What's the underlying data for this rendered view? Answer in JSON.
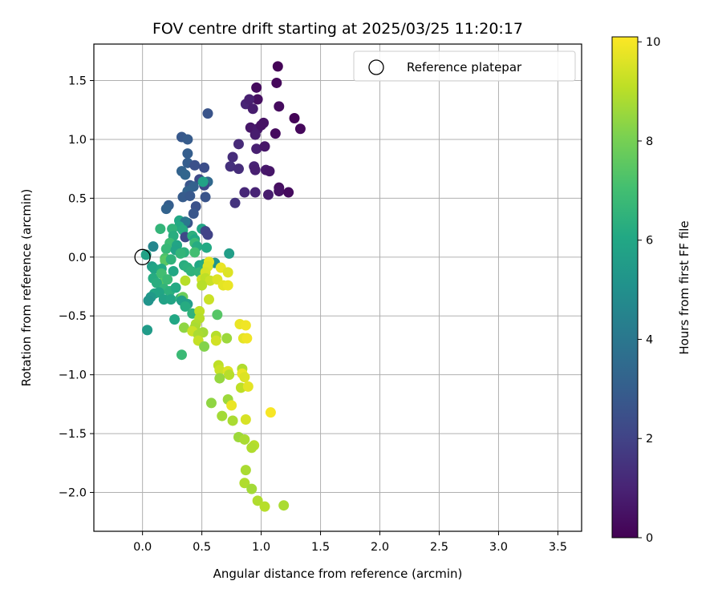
{
  "chart_data": {
    "type": "scatter",
    "title": "FOV centre drift starting at 2025/03/25 11:20:17",
    "xlabel": "Angular distance from reference (arcmin)",
    "ylabel": "Rotation from reference (arcmin)",
    "xlim": [
      -0.41,
      3.7
    ],
    "ylim": [
      -2.33,
      1.81
    ],
    "xticks": [
      0.0,
      0.5,
      1.0,
      1.5,
      2.0,
      2.5,
      3.0,
      3.5
    ],
    "yticks": [
      -2.0,
      -1.5,
      -1.0,
      -0.5,
      0.0,
      0.5,
      1.0,
      1.5
    ],
    "xtick_labels": [
      "0.0",
      "0.5",
      "1.0",
      "1.5",
      "2.0",
      "2.5",
      "3.0",
      "3.5"
    ],
    "ytick_labels": [
      "−2.0",
      "−1.5",
      "−1.0",
      "−0.5",
      "0.0",
      "0.5",
      "1.0",
      "1.5"
    ],
    "grid": true,
    "legend": {
      "placement": "top-right",
      "entries": [
        "Reference platepar"
      ]
    },
    "reference_point": {
      "x": 0.0,
      "y": 0.0,
      "label": "Reference platepar"
    },
    "colorbar": {
      "label": "Hours from first FF file",
      "min": 0,
      "max": 10.1,
      "ticks": [
        0,
        2,
        4,
        6,
        8,
        10
      ],
      "tick_labels": [
        "0",
        "2",
        "4",
        "6",
        "8",
        "10"
      ],
      "colormap": "viridis"
    },
    "points": [
      {
        "x": 1.14,
        "y": 1.62,
        "c": 0.1
      },
      {
        "x": 1.13,
        "y": 1.48,
        "c": 0.2
      },
      {
        "x": 0.96,
        "y": 1.44,
        "c": 0.3
      },
      {
        "x": 0.97,
        "y": 1.34,
        "c": 0.4
      },
      {
        "x": 1.15,
        "y": 1.28,
        "c": 0.3
      },
      {
        "x": 0.87,
        "y": 1.3,
        "c": 1.0
      },
      {
        "x": 0.9,
        "y": 1.34,
        "c": 0.9
      },
      {
        "x": 0.93,
        "y": 1.26,
        "c": 0.8
      },
      {
        "x": 1.28,
        "y": 1.18,
        "c": 0.1
      },
      {
        "x": 1.33,
        "y": 1.09,
        "c": 0.2
      },
      {
        "x": 1.02,
        "y": 1.14,
        "c": 0.5
      },
      {
        "x": 0.91,
        "y": 1.1,
        "c": 0.6
      },
      {
        "x": 0.97,
        "y": 1.09,
        "c": 0.7
      },
      {
        "x": 1.0,
        "y": 1.12,
        "c": 0.5
      },
      {
        "x": 0.95,
        "y": 1.04,
        "c": 0.8
      },
      {
        "x": 1.12,
        "y": 1.05,
        "c": 0.3
      },
      {
        "x": 0.96,
        "y": 0.92,
        "c": 0.9
      },
      {
        "x": 1.03,
        "y": 0.94,
        "c": 0.6
      },
      {
        "x": 0.81,
        "y": 0.96,
        "c": 1.2
      },
      {
        "x": 0.76,
        "y": 0.85,
        "c": 1.3
      },
      {
        "x": 0.74,
        "y": 0.77,
        "c": 1.4
      },
      {
        "x": 0.81,
        "y": 0.75,
        "c": 1.3
      },
      {
        "x": 0.94,
        "y": 0.77,
        "c": 1.0
      },
      {
        "x": 0.95,
        "y": 0.74,
        "c": 0.9
      },
      {
        "x": 1.04,
        "y": 0.74,
        "c": 0.7
      },
      {
        "x": 1.07,
        "y": 0.73,
        "c": 0.6
      },
      {
        "x": 1.15,
        "y": 0.59,
        "c": 0.4
      },
      {
        "x": 1.15,
        "y": 0.56,
        "c": 0.5
      },
      {
        "x": 1.23,
        "y": 0.55,
        "c": 0.3
      },
      {
        "x": 0.86,
        "y": 0.55,
        "c": 1.1
      },
      {
        "x": 0.95,
        "y": 0.55,
        "c": 1.0
      },
      {
        "x": 1.06,
        "y": 0.53,
        "c": 0.8
      },
      {
        "x": 0.78,
        "y": 0.46,
        "c": 1.5
      },
      {
        "x": 0.55,
        "y": 1.22,
        "c": 2.6
      },
      {
        "x": 0.33,
        "y": 1.02,
        "c": 2.8
      },
      {
        "x": 0.38,
        "y": 1.0,
        "c": 2.9
      },
      {
        "x": 0.38,
        "y": 0.88,
        "c": 3.0
      },
      {
        "x": 0.38,
        "y": 0.8,
        "c": 3.0
      },
      {
        "x": 0.44,
        "y": 0.78,
        "c": 2.5
      },
      {
        "x": 0.52,
        "y": 0.76,
        "c": 2.4
      },
      {
        "x": 0.33,
        "y": 0.73,
        "c": 3.2
      },
      {
        "x": 0.36,
        "y": 0.7,
        "c": 3.3
      },
      {
        "x": 0.48,
        "y": 0.66,
        "c": 2.3
      },
      {
        "x": 0.55,
        "y": 0.64,
        "c": 3.4
      },
      {
        "x": 0.4,
        "y": 0.61,
        "c": 2.7
      },
      {
        "x": 0.43,
        "y": 0.6,
        "c": 3.1
      },
      {
        "x": 0.52,
        "y": 0.61,
        "c": 2.2
      },
      {
        "x": 0.38,
        "y": 0.56,
        "c": 3.2
      },
      {
        "x": 0.34,
        "y": 0.51,
        "c": 2.9
      },
      {
        "x": 0.4,
        "y": 0.52,
        "c": 2.8
      },
      {
        "x": 0.53,
        "y": 0.51,
        "c": 2.6
      },
      {
        "x": 0.51,
        "y": 0.64,
        "c": 5.8
      },
      {
        "x": 0.45,
        "y": 0.43,
        "c": 2.5
      },
      {
        "x": 0.22,
        "y": 0.44,
        "c": 3.0
      },
      {
        "x": 0.2,
        "y": 0.41,
        "c": 3.2
      },
      {
        "x": 0.43,
        "y": 0.37,
        "c": 2.7
      },
      {
        "x": 0.38,
        "y": 0.29,
        "c": 2.6
      },
      {
        "x": 0.31,
        "y": 0.31,
        "c": 6.0
      },
      {
        "x": 0.36,
        "y": 0.3,
        "c": 4.0
      },
      {
        "x": 0.31,
        "y": 0.26,
        "c": 6.1
      },
      {
        "x": 0.15,
        "y": 0.24,
        "c": 6.6
      },
      {
        "x": 0.25,
        "y": 0.24,
        "c": 6.5
      },
      {
        "x": 0.34,
        "y": 0.23,
        "c": 6.2
      },
      {
        "x": 0.5,
        "y": 0.24,
        "c": 5.9
      },
      {
        "x": 0.53,
        "y": 0.22,
        "c": 2.1
      },
      {
        "x": 0.55,
        "y": 0.19,
        "c": 2.0
      },
      {
        "x": 0.26,
        "y": 0.18,
        "c": 6.3
      },
      {
        "x": 0.36,
        "y": 0.17,
        "c": 2.2
      },
      {
        "x": 0.42,
        "y": 0.18,
        "c": 6.4
      },
      {
        "x": 0.44,
        "y": 0.15,
        "c": 6.0
      },
      {
        "x": 0.44,
        "y": 0.12,
        "c": 6.8
      },
      {
        "x": 0.46,
        "y": 0.09,
        "c": 6.2
      },
      {
        "x": 0.23,
        "y": 0.12,
        "c": 6.9
      },
      {
        "x": 0.29,
        "y": 0.1,
        "c": 5.9
      },
      {
        "x": 0.54,
        "y": 0.08,
        "c": 6.1
      },
      {
        "x": 0.09,
        "y": 0.09,
        "c": 4.6
      },
      {
        "x": 0.2,
        "y": 0.07,
        "c": 6.7
      },
      {
        "x": 0.28,
        "y": 0.06,
        "c": 5.8
      },
      {
        "x": 0.35,
        "y": 0.04,
        "c": 6.4
      },
      {
        "x": 0.32,
        "y": 0.03,
        "c": 6.6
      },
      {
        "x": 0.44,
        "y": 0.04,
        "c": 7.0
      },
      {
        "x": 0.73,
        "y": 0.03,
        "c": 5.6
      },
      {
        "x": 0.03,
        "y": 0.02,
        "c": 5.8
      },
      {
        "x": 0.19,
        "y": -0.01,
        "c": 7.2
      },
      {
        "x": 0.19,
        "y": -0.03,
        "c": 7.5
      },
      {
        "x": 0.24,
        "y": -0.02,
        "c": 6.5
      },
      {
        "x": 0.61,
        "y": -0.05,
        "c": 5.2
      },
      {
        "x": 0.35,
        "y": -0.07,
        "c": 6.3
      },
      {
        "x": 0.38,
        "y": -0.09,
        "c": 6.4
      },
      {
        "x": 0.48,
        "y": -0.07,
        "c": 6.0
      },
      {
        "x": 0.52,
        "y": -0.06,
        "c": 6.2
      },
      {
        "x": 0.56,
        "y": -0.04,
        "c": 9.7
      },
      {
        "x": 0.55,
        "y": -0.08,
        "c": 9.6
      },
      {
        "x": 0.08,
        "y": -0.08,
        "c": 5.6
      },
      {
        "x": 0.1,
        "y": -0.1,
        "c": 5.9
      },
      {
        "x": 0.16,
        "y": -0.1,
        "c": 6.1
      },
      {
        "x": 0.26,
        "y": -0.12,
        "c": 6.0
      },
      {
        "x": 0.41,
        "y": -0.12,
        "c": 6.5
      },
      {
        "x": 0.48,
        "y": -0.13,
        "c": 6.6
      },
      {
        "x": 0.53,
        "y": -0.13,
        "c": 9.5
      },
      {
        "x": 0.66,
        "y": -0.09,
        "c": 9.8
      },
      {
        "x": 0.72,
        "y": -0.13,
        "c": 9.6
      },
      {
        "x": 0.09,
        "y": -0.18,
        "c": 6.2
      },
      {
        "x": 0.16,
        "y": -0.14,
        "c": 7.0
      },
      {
        "x": 0.17,
        "y": -0.22,
        "c": 7.4
      },
      {
        "x": 0.21,
        "y": -0.19,
        "c": 6.8
      },
      {
        "x": 0.36,
        "y": -0.2,
        "c": 9.0
      },
      {
        "x": 0.5,
        "y": -0.19,
        "c": 9.4
      },
      {
        "x": 0.53,
        "y": -0.18,
        "c": 9.1
      },
      {
        "x": 0.57,
        "y": -0.2,
        "c": 9.3
      },
      {
        "x": 0.63,
        "y": -0.19,
        "c": 9.6
      },
      {
        "x": 0.68,
        "y": -0.24,
        "c": 9.7
      },
      {
        "x": 0.72,
        "y": -0.24,
        "c": 9.8
      },
      {
        "x": 0.5,
        "y": -0.24,
        "c": 9.0
      },
      {
        "x": 0.12,
        "y": -0.22,
        "c": 6.3
      },
      {
        "x": 0.18,
        "y": -0.27,
        "c": 6.6
      },
      {
        "x": 0.23,
        "y": -0.29,
        "c": 6.4
      },
      {
        "x": 0.28,
        "y": -0.26,
        "c": 6.1
      },
      {
        "x": 0.1,
        "y": -0.31,
        "c": 6.0
      },
      {
        "x": 0.14,
        "y": -0.3,
        "c": 5.9
      },
      {
        "x": 0.07,
        "y": -0.34,
        "c": 5.4
      },
      {
        "x": 0.05,
        "y": -0.37,
        "c": 5.2
      },
      {
        "x": 0.18,
        "y": -0.36,
        "c": 5.8
      },
      {
        "x": 0.24,
        "y": -0.36,
        "c": 5.9
      },
      {
        "x": 0.32,
        "y": -0.35,
        "c": 6.6
      },
      {
        "x": 0.34,
        "y": -0.34,
        "c": 7.8
      },
      {
        "x": 0.33,
        "y": -0.37,
        "c": 5.7
      },
      {
        "x": 0.38,
        "y": -0.4,
        "c": 5.6
      },
      {
        "x": 0.56,
        "y": -0.36,
        "c": 9.3
      },
      {
        "x": 0.36,
        "y": -0.42,
        "c": 6.2
      },
      {
        "x": 0.42,
        "y": -0.48,
        "c": 6.5
      },
      {
        "x": 0.48,
        "y": -0.46,
        "c": 9.1
      },
      {
        "x": 0.63,
        "y": -0.49,
        "c": 7.4
      },
      {
        "x": 0.27,
        "y": -0.53,
        "c": 6.0
      },
      {
        "x": 0.48,
        "y": -0.52,
        "c": 9.0
      },
      {
        "x": 0.45,
        "y": -0.57,
        "c": 8.9
      },
      {
        "x": 0.44,
        "y": -0.6,
        "c": 8.8
      },
      {
        "x": 0.35,
        "y": -0.6,
        "c": 8.4
      },
      {
        "x": 0.04,
        "y": -0.62,
        "c": 5.5
      },
      {
        "x": 0.42,
        "y": -0.63,
        "c": 9.3
      },
      {
        "x": 0.51,
        "y": -0.64,
        "c": 8.7
      },
      {
        "x": 0.47,
        "y": -0.66,
        "c": 8.8
      },
      {
        "x": 0.62,
        "y": -0.67,
        "c": 9.0
      },
      {
        "x": 0.71,
        "y": -0.69,
        "c": 8.6
      },
      {
        "x": 0.82,
        "y": -0.57,
        "c": 9.8
      },
      {
        "x": 0.87,
        "y": -0.58,
        "c": 9.9
      },
      {
        "x": 0.62,
        "y": -0.71,
        "c": 9.4
      },
      {
        "x": 0.85,
        "y": -0.69,
        "c": 9.7
      },
      {
        "x": 0.88,
        "y": -0.69,
        "c": 9.9
      },
      {
        "x": 0.47,
        "y": -0.71,
        "c": 9.2
      },
      {
        "x": 0.52,
        "y": -0.76,
        "c": 8.2
      },
      {
        "x": 0.33,
        "y": -0.83,
        "c": 6.8
      },
      {
        "x": 0.64,
        "y": -0.92,
        "c": 9.1
      },
      {
        "x": 0.65,
        "y": -0.96,
        "c": 9.3
      },
      {
        "x": 0.72,
        "y": -0.97,
        "c": 9.6
      },
      {
        "x": 0.73,
        "y": -1.0,
        "c": 9.0
      },
      {
        "x": 0.84,
        "y": -0.95,
        "c": 8.9
      },
      {
        "x": 0.84,
        "y": -0.99,
        "c": 9.8
      },
      {
        "x": 0.86,
        "y": -1.02,
        "c": 9.6
      },
      {
        "x": 0.65,
        "y": -1.03,
        "c": 8.5
      },
      {
        "x": 0.83,
        "y": -1.11,
        "c": 9.1
      },
      {
        "x": 0.89,
        "y": -1.1,
        "c": 9.7
      },
      {
        "x": 0.72,
        "y": -1.21,
        "c": 8.6
      },
      {
        "x": 0.75,
        "y": -1.26,
        "c": 9.8
      },
      {
        "x": 0.58,
        "y": -1.24,
        "c": 8.4
      },
      {
        "x": 0.67,
        "y": -1.35,
        "c": 8.7
      },
      {
        "x": 0.76,
        "y": -1.39,
        "c": 8.8
      },
      {
        "x": 0.87,
        "y": -1.38,
        "c": 9.5
      },
      {
        "x": 1.08,
        "y": -1.32,
        "c": 10.0
      },
      {
        "x": 0.81,
        "y": -1.53,
        "c": 8.6
      },
      {
        "x": 0.86,
        "y": -1.55,
        "c": 8.8
      },
      {
        "x": 0.94,
        "y": -1.6,
        "c": 9.0
      },
      {
        "x": 0.92,
        "y": -1.62,
        "c": 8.9
      },
      {
        "x": 0.87,
        "y": -1.81,
        "c": 8.8
      },
      {
        "x": 0.86,
        "y": -1.92,
        "c": 8.9
      },
      {
        "x": 0.92,
        "y": -1.97,
        "c": 8.7
      },
      {
        "x": 0.97,
        "y": -2.07,
        "c": 8.9
      },
      {
        "x": 1.03,
        "y": -2.12,
        "c": 9.0
      },
      {
        "x": 1.19,
        "y": -2.11,
        "c": 8.8
      }
    ]
  }
}
